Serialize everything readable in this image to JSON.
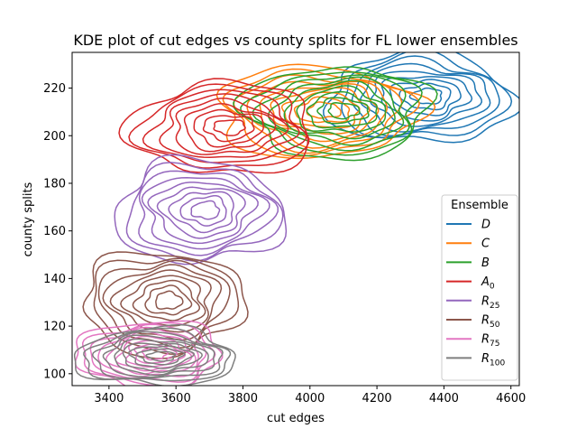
{
  "chart_data": {
    "type": "kde-contour",
    "title": "KDE plot of cut edges vs county splits for FL lower ensembles",
    "xlabel": "cut edges",
    "ylabel": "county splits",
    "xlim": [
      3290,
      4625
    ],
    "ylim": [
      95,
      235
    ],
    "xticks": [
      3400,
      3600,
      3800,
      4000,
      4200,
      4400,
      4600
    ],
    "yticks": [
      100,
      120,
      140,
      160,
      180,
      200,
      220
    ],
    "grid": false,
    "legend": {
      "title": "Ensemble",
      "placement": "lower-right",
      "entries": [
        {
          "key": "D",
          "main": "D",
          "sub": ""
        },
        {
          "key": "C",
          "main": "C",
          "sub": ""
        },
        {
          "key": "B",
          "main": "B",
          "sub": ""
        },
        {
          "key": "A0",
          "main": "A",
          "sub": "0"
        },
        {
          "key": "R25",
          "main": "R",
          "sub": "25"
        },
        {
          "key": "R50",
          "main": "R",
          "sub": "50"
        },
        {
          "key": "R75",
          "main": "R",
          "sub": "75"
        },
        {
          "key": "R100",
          "main": "R",
          "sub": "100"
        }
      ]
    },
    "series": [
      {
        "key": "D",
        "color": "#1f77b4",
        "center": {
          "x": 4330,
          "y": 216
        },
        "spread": {
          "x": 115,
          "y": 8
        },
        "levels": 9
      },
      {
        "key": "C",
        "color": "#ff7f0e",
        "center": {
          "x": 4020,
          "y": 210
        },
        "spread": {
          "x": 125,
          "y": 8
        },
        "levels": 9
      },
      {
        "key": "B",
        "color": "#2ca02c",
        "center": {
          "x": 4080,
          "y": 210
        },
        "spread": {
          "x": 115,
          "y": 8
        },
        "levels": 9
      },
      {
        "key": "A0",
        "color": "#d62728",
        "center": {
          "x": 3740,
          "y": 203
        },
        "spread": {
          "x": 115,
          "y": 8
        },
        "levels": 9
      },
      {
        "key": "R25",
        "color": "#9467bd",
        "center": {
          "x": 3670,
          "y": 168
        },
        "spread": {
          "x": 105,
          "y": 9
        },
        "levels": 9
      },
      {
        "key": "R50",
        "color": "#8c564b",
        "center": {
          "x": 3560,
          "y": 130
        },
        "spread": {
          "x": 100,
          "y": 9
        },
        "levels": 9
      },
      {
        "key": "R75",
        "color": "#e377c2",
        "center": {
          "x": 3520,
          "y": 108
        },
        "spread": {
          "x": 90,
          "y": 6
        },
        "levels": 9
      },
      {
        "key": "R100",
        "color": "#7f7f7f",
        "center": {
          "x": 3540,
          "y": 107
        },
        "spread": {
          "x": 100,
          "y": 5
        },
        "levels": 9
      }
    ]
  }
}
